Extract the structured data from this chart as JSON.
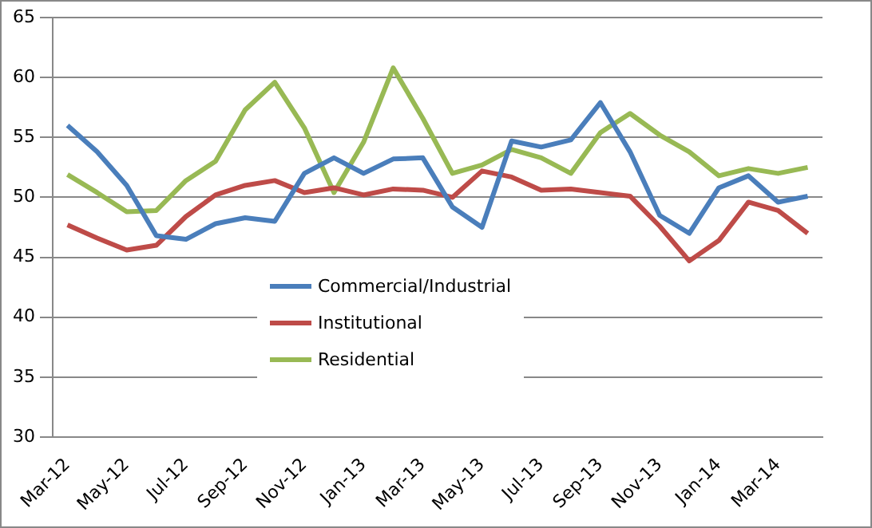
{
  "chart_data": {
    "type": "line",
    "categories": [
      "Mar-12",
      null,
      "May-12",
      null,
      "Jul-12",
      null,
      "Sep-12",
      null,
      "Nov-12",
      null,
      "Jan-13",
      null,
      "Mar-13",
      null,
      "May-13",
      null,
      "Jul-13",
      null,
      "Sep-13",
      null,
      "Nov-13",
      null,
      "Jan-14",
      null,
      "Mar-14",
      null
    ],
    "series": [
      {
        "name": "Commercial/Industrial",
        "color": "#4a7ebb",
        "values": [
          56,
          53.8,
          51,
          46.8,
          46.5,
          47.8,
          48.3,
          48,
          52,
          53.3,
          52,
          53.2,
          53.3,
          49.2,
          47.5,
          54.7,
          54.2,
          54.8,
          57.9,
          53.8,
          48.5,
          47,
          50.8,
          51.8,
          49.6,
          50.1
        ]
      },
      {
        "name": "Institutional",
        "color": "#be4b48",
        "values": [
          47.7,
          46.6,
          45.6,
          46,
          48.4,
          50.2,
          51,
          51.4,
          50.4,
          50.8,
          50.2,
          50.7,
          50.6,
          50,
          52.2,
          51.7,
          50.6,
          50.7,
          50.4,
          50.1,
          47.6,
          44.7,
          46.4,
          49.6,
          48.9,
          47
        ]
      },
      {
        "name": "Residential",
        "color": "#98b954",
        "values": [
          51.9,
          50.4,
          48.8,
          48.9,
          51.4,
          53,
          57.3,
          59.6,
          55.8,
          50.4,
          54.6,
          60.8,
          56.6,
          52,
          52.7,
          54,
          53.3,
          52,
          55.4,
          57,
          55.2,
          53.8,
          51.8,
          52.4,
          52,
          52.5
        ]
      }
    ],
    "ylim": [
      30,
      65
    ],
    "yticks": [
      30,
      35,
      40,
      45,
      50,
      55,
      60,
      65
    ],
    "grid": "y",
    "legend": "bottom left",
    "marker": "none",
    "line_style": "solid"
  }
}
